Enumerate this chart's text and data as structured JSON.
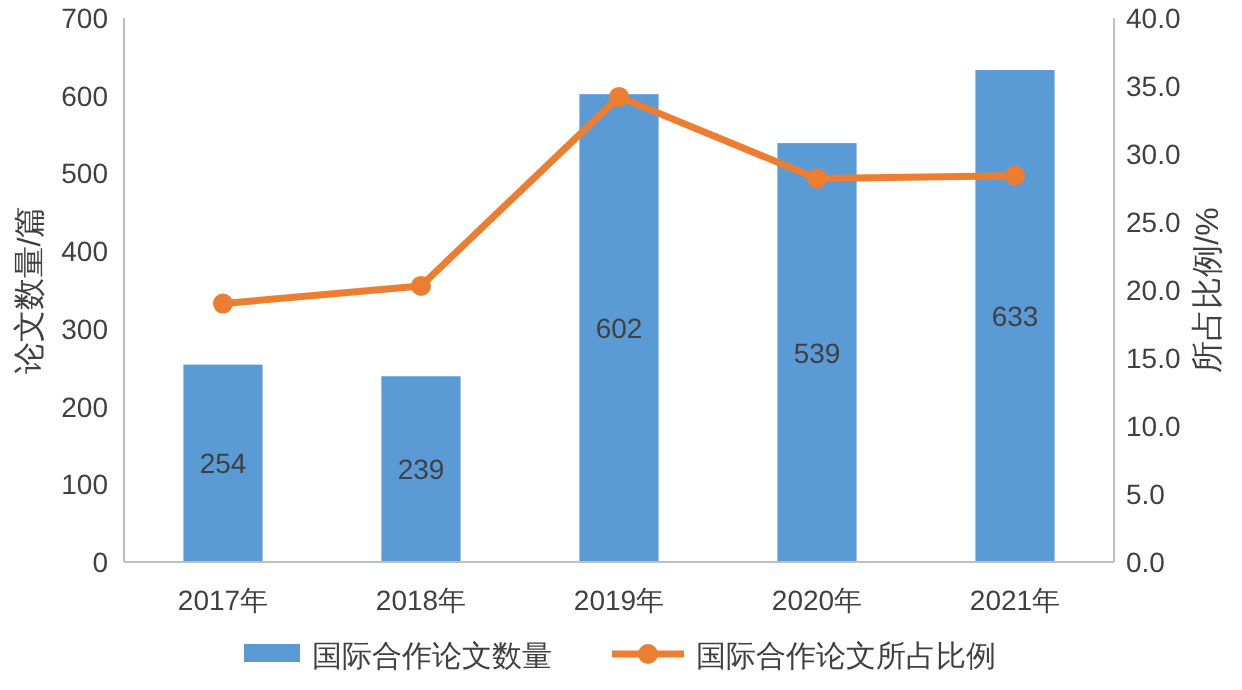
{
  "chart_data": {
    "type": "bar",
    "categories": [
      "2017年",
      "2018年",
      "2019年",
      "2020年",
      "2021年"
    ],
    "ylabel": "论文数量/篇",
    "y2label": "所占比例/%",
    "ylim": [
      0,
      700
    ],
    "yticks": [
      0,
      100,
      200,
      300,
      400,
      500,
      600,
      700
    ],
    "y2lim": [
      0,
      40
    ],
    "y2ticks": [
      {
        "value": 0,
        "label": "0.0"
      },
      {
        "value": 5,
        "label": "5.0"
      },
      {
        "value": 10,
        "label": "10.0"
      },
      {
        "value": 15,
        "label": "15.0"
      },
      {
        "value": 20,
        "label": "20.0"
      },
      {
        "value": 25,
        "label": "25.0"
      },
      {
        "value": 30,
        "label": "30.0"
      },
      {
        "value": 35,
        "label": "35.0"
      },
      {
        "value": 40,
        "label": "40.0"
      }
    ],
    "legend": "bottom",
    "grid": false,
    "series": [
      {
        "name": "国际合作论文数量",
        "color": "#5b9bd5",
        "values": [
          254,
          239,
          602,
          539,
          633
        ],
        "value_labels": [
          "254",
          "239",
          "602",
          "539",
          "633"
        ]
      },
      {
        "name": "国际合作论文所占比例",
        "type": "line",
        "axis": "y2",
        "color": "#ed7d31",
        "marker": "circle",
        "values": [
          19.0,
          20.3,
          34.2,
          28.2,
          28.4
        ]
      }
    ]
  }
}
